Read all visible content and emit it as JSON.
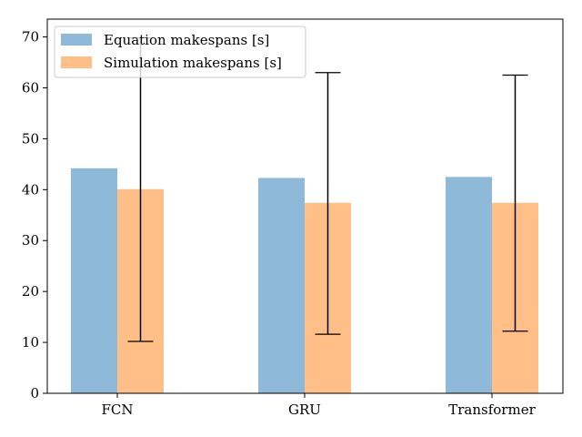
{
  "chart_data": {
    "type": "bar",
    "title": "",
    "xlabel": "",
    "ylabel": "",
    "categories": [
      "FCN",
      "GRU",
      "Transformer"
    ],
    "ylim": [
      0,
      73.5
    ],
    "yticks": [
      0,
      10,
      20,
      30,
      40,
      50,
      60,
      70
    ],
    "series": [
      {
        "name": "Equation makespans [s]",
        "color": "#8fb9d9",
        "values": [
          44.2,
          42.3,
          42.5
        ]
      },
      {
        "name": "Simulation makespans [s]",
        "color": "#ffbf87",
        "values": [
          40.1,
          37.4,
          37.4
        ],
        "error_low": [
          10.2,
          11.6,
          12.2
        ],
        "error_high": [
          69.8,
          63.0,
          62.5
        ]
      }
    ],
    "legend_position": "top-left",
    "grid": false
  }
}
